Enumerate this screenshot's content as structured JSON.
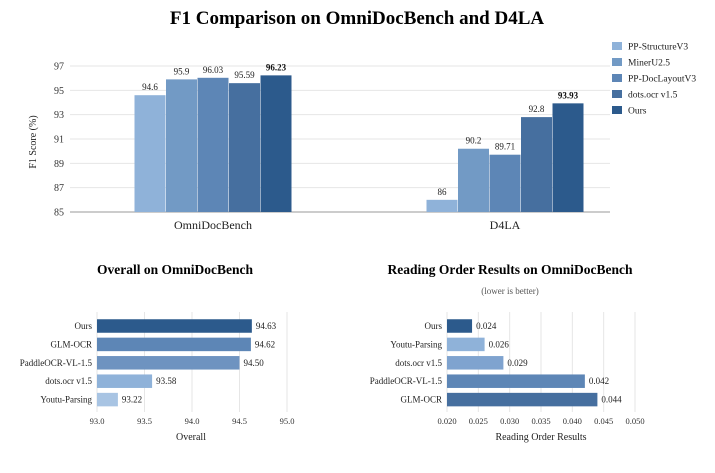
{
  "colors": [
    "#8fb2d9",
    "#729ac5",
    "#5d86b6",
    "#466f9f",
    "#2c5a8c"
  ],
  "chart_data": [
    {
      "id": "top",
      "type": "bar",
      "title": "F1 Comparison on OmniDocBench and D4LA",
      "ylabel": "F1 Score (%)",
      "ylim": [
        85,
        97
      ],
      "yticks": [
        85,
        87,
        89,
        91,
        93,
        95,
        97
      ],
      "categories": [
        "OmniDocBench",
        "D4LA"
      ],
      "series": [
        {
          "name": "PP-StructureV3",
          "values": [
            94.6,
            86
          ],
          "labels": [
            "94.6",
            "86"
          ]
        },
        {
          "name": "MinerU2.5",
          "values": [
            95.9,
            90.2
          ],
          "labels": [
            "95.9",
            "90.2"
          ]
        },
        {
          "name": "PP-DocLayoutV3",
          "values": [
            96.03,
            89.71
          ],
          "labels": [
            "96.03",
            "89.71"
          ]
        },
        {
          "name": "dots.ocr v1.5",
          "values": [
            95.59,
            92.8
          ],
          "labels": [
            "95.59",
            "92.8"
          ]
        },
        {
          "name": "Ours",
          "values": [
            96.23,
            93.93
          ],
          "labels": [
            "96.23",
            "93.93"
          ],
          "bold": true
        }
      ],
      "legend": "top-right"
    },
    {
      "id": "left",
      "type": "bar",
      "orientation": "horizontal",
      "title": "Overall on OmniDocBench",
      "xlabel": "Overall",
      "xlim": [
        93.0,
        95.0
      ],
      "xticks": [
        "93.0",
        "93.5",
        "94.0",
        "94.5",
        "95.0"
      ],
      "categories": [
        "Ours",
        "GLM-OCR",
        "PaddleOCR-VL-1.5",
        "dots.ocr v1.5",
        "Youtu-Parsing"
      ],
      "values": [
        94.63,
        94.62,
        94.5,
        93.58,
        93.22
      ],
      "labels": [
        "94.63",
        "94.62",
        "94.50",
        "93.58",
        "93.22"
      ],
      "bar_colors": [
        "#2c5a8c",
        "#5d86b6",
        "#6e93c0",
        "#8fb2d9",
        "#a8c4e3"
      ]
    },
    {
      "id": "right",
      "type": "bar",
      "orientation": "horizontal",
      "title": "Reading Order Results on OmniDocBench",
      "note": "(lower is better)",
      "xlabel": "Reading Order Results",
      "xlim": [
        0.02,
        0.05
      ],
      "xticks": [
        "0.020",
        "0.025",
        "0.030",
        "0.035",
        "0.040",
        "0.045",
        "0.050"
      ],
      "categories": [
        "Ours",
        "Youtu-Parsing",
        "dots.ocr v1.5",
        "PaddleOCR-VL-1.5",
        "GLM-OCR"
      ],
      "values": [
        0.024,
        0.026,
        0.029,
        0.042,
        0.044
      ],
      "labels": [
        "0.024",
        "0.026",
        "0.029",
        "0.042",
        "0.044"
      ],
      "bar_colors": [
        "#2c5a8c",
        "#8fb2d9",
        "#7fa3cf",
        "#5d86b6",
        "#466f9f"
      ]
    }
  ]
}
